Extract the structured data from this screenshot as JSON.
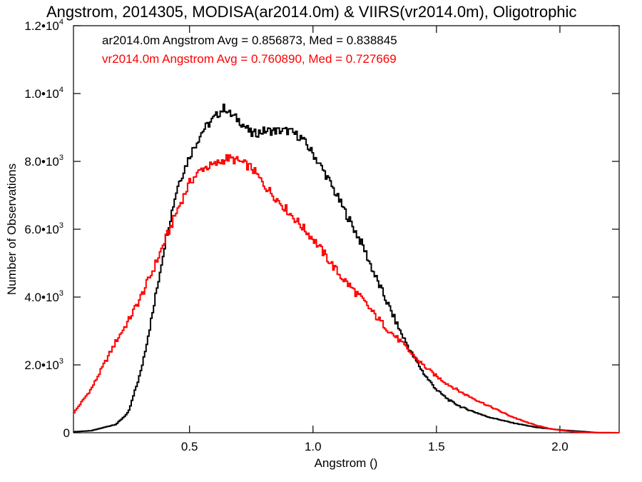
{
  "chart_data": {
    "type": "line",
    "title": "Angstrom, 2014305, MODISA(ar2014.0m) & VIIRS(vr2014.0m), Oligotrophic",
    "xlabel": "Angstrom ()",
    "ylabel": "Number of Observations",
    "xlim": [
      0.03,
      2.24
    ],
    "ylim": [
      0,
      12000
    ],
    "x_ticks": [
      {
        "value": 0.5,
        "label": "0.5"
      },
      {
        "value": 1.0,
        "label": "1.0"
      },
      {
        "value": 1.5,
        "label": "1.5"
      },
      {
        "value": 2.0,
        "label": "2.0"
      }
    ],
    "y_ticks": [
      {
        "value": 0,
        "label": "0",
        "exp": ""
      },
      {
        "value": 2000,
        "label": "2.0•10",
        "exp": "3"
      },
      {
        "value": 4000,
        "label": "4.0•10",
        "exp": "3"
      },
      {
        "value": 6000,
        "label": "6.0•10",
        "exp": "3"
      },
      {
        "value": 8000,
        "label": "8.0•10",
        "exp": "3"
      },
      {
        "value": 10000,
        "label": "1.0•10",
        "exp": "4"
      },
      {
        "value": 12000,
        "label": "1.2•10",
        "exp": "4"
      }
    ],
    "grid": false,
    "legend_position": "top-left",
    "series": [
      {
        "name": "ar2014.0m",
        "color": "#000000",
        "stats_label": "ar2014.0m Angstrom Avg = 0.856873, Med = 0.838845",
        "x": [
          0.03,
          0.1,
          0.2,
          0.25,
          0.3,
          0.35,
          0.4,
          0.45,
          0.5,
          0.55,
          0.6,
          0.64,
          0.66,
          0.7,
          0.75,
          0.8,
          0.85,
          0.9,
          0.95,
          1.0,
          1.05,
          1.1,
          1.15,
          1.2,
          1.25,
          1.3,
          1.35,
          1.4,
          1.45,
          1.5,
          1.55,
          1.6,
          1.7,
          1.8,
          1.9,
          2.0,
          2.1,
          2.15,
          2.24
        ],
        "y": [
          30,
          60,
          250,
          600,
          1800,
          3600,
          5700,
          7300,
          8200,
          8900,
          9300,
          9600,
          9400,
          9200,
          8800,
          8900,
          8900,
          8900,
          8700,
          8200,
          7600,
          6900,
          6200,
          5500,
          4600,
          3800,
          3000,
          2300,
          1700,
          1250,
          950,
          750,
          480,
          300,
          160,
          80,
          30,
          0,
          0
        ]
      },
      {
        "name": "vr2014.0m",
        "color": "#ff0000",
        "stats_label": "vr2014.0m Angstrom Avg = 0.760890, Med = 0.727669",
        "x": [
          0.03,
          0.05,
          0.1,
          0.15,
          0.2,
          0.25,
          0.3,
          0.35,
          0.4,
          0.45,
          0.5,
          0.55,
          0.6,
          0.65,
          0.7,
          0.75,
          0.8,
          0.85,
          0.9,
          0.95,
          1.0,
          1.05,
          1.1,
          1.15,
          1.2,
          1.25,
          1.3,
          1.35,
          1.4,
          1.45,
          1.5,
          1.55,
          1.6,
          1.65,
          1.7,
          1.75,
          1.8,
          1.85,
          1.9,
          1.95,
          2.0,
          2.05,
          2.1,
          2.24
        ],
        "y": [
          600,
          800,
          1300,
          2000,
          2700,
          3300,
          4000,
          4800,
          5700,
          6600,
          7400,
          7800,
          7900,
          8100,
          8000,
          7800,
          7300,
          6900,
          6500,
          6100,
          5700,
          5200,
          4700,
          4300,
          3900,
          3450,
          3050,
          2700,
          2300,
          1950,
          1650,
          1400,
          1180,
          1000,
          820,
          650,
          480,
          340,
          220,
          130,
          70,
          30,
          10,
          0
        ]
      }
    ]
  }
}
